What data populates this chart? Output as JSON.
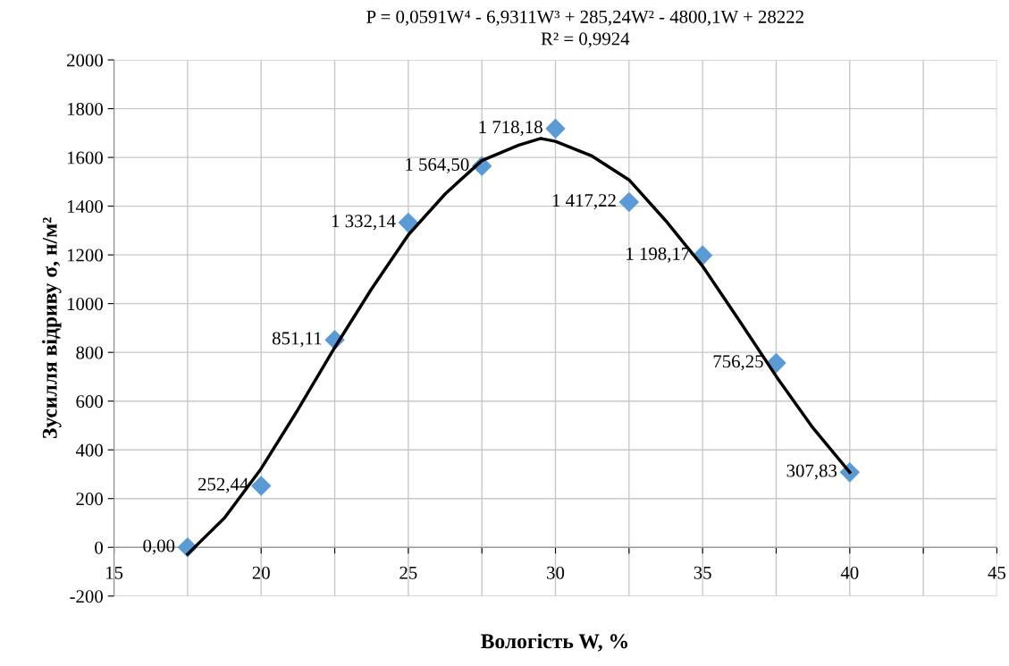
{
  "chart_data": {
    "type": "scatter",
    "xlabel": "Вологість W, %",
    "ylabel": "Зусилля відриву σ, н/м²",
    "annotations": [
      "P = 0,0591W⁴ - 6,9311W³ + 285,24W² - 4800,1W + 28222",
      "R² = 0,9924"
    ],
    "xlim": [
      15,
      45
    ],
    "xticks": [
      15,
      {
        "value": 17.5,
        "label": null
      },
      20,
      {
        "value": 22.5,
        "label": null
      },
      25,
      {
        "value": 27.5,
        "label": null
      },
      30,
      {
        "value": 32.5,
        "label": null
      },
      35,
      {
        "value": 37.5,
        "label": null
      },
      40,
      {
        "value": 42.5,
        "label": null
      },
      45
    ],
    "ylim": [
      -200,
      2000
    ],
    "yticks": [
      -200,
      0,
      200,
      400,
      600,
      800,
      1000,
      1200,
      1400,
      1600,
      1800,
      2000
    ],
    "grid": true,
    "series": [
      {
        "type": "line",
        "color": "#000000",
        "marker": "none",
        "line_style": "solid",
        "x": [
          17.5,
          18.75,
          20,
          21.25,
          22.5,
          23.75,
          25,
          26.25,
          27.5,
          28.75,
          29.5,
          30,
          31.25,
          32.5,
          33.75,
          35,
          36.25,
          37.5,
          38.75,
          40
        ],
        "values": [
          -28,
          120,
          323,
          565,
          820,
          1060,
          1282,
          1450,
          1587,
          1650,
          1678,
          1666,
          1605,
          1508,
          1340,
          1154,
          930,
          702,
          490,
          308
        ]
      },
      {
        "color": "#5b9bd5",
        "marker": "diamond",
        "x": [
          17.5,
          20,
          22.5,
          25,
          27.5,
          30,
          32.5,
          35,
          37.5,
          40
        ],
        "values": [
          0,
          252.44,
          851.11,
          1332.14,
          1564.5,
          1718.18,
          1417.22,
          1198.17,
          756.25,
          307.83
        ],
        "value_labels": [
          "0,00",
          "252,44",
          "851,11",
          "1 332,14",
          "1 564,50",
          "1 718,18",
          "1 417,22",
          "1 198,17",
          "756,25",
          "307,83"
        ]
      }
    ]
  }
}
